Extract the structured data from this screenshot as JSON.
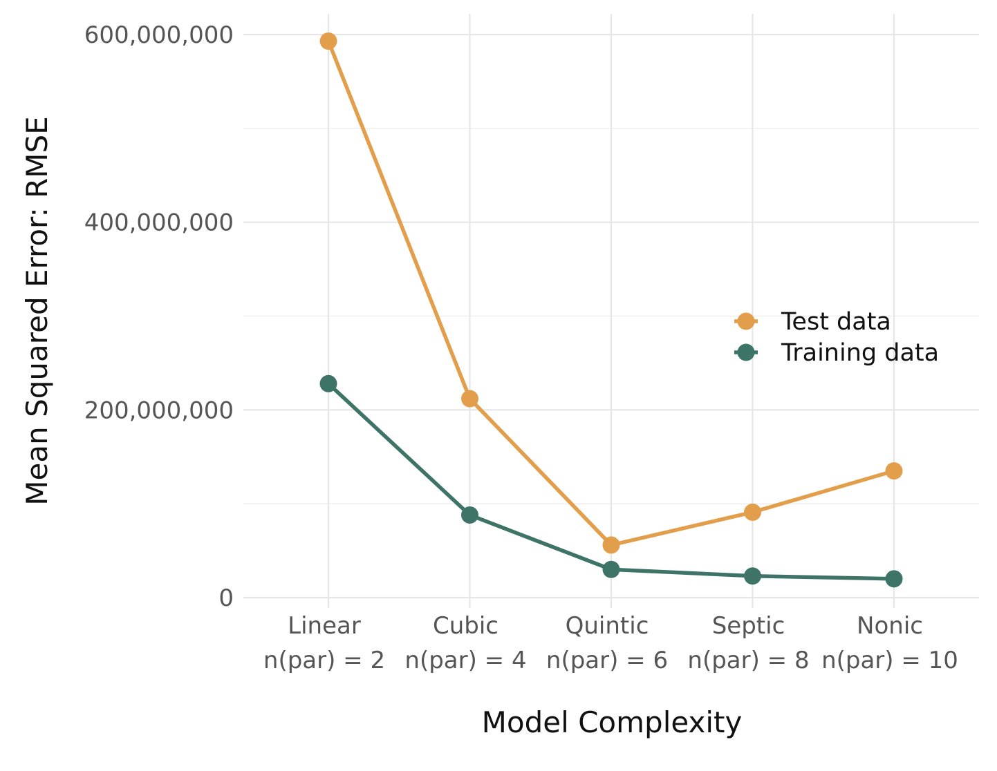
{
  "chart_data": {
    "type": "line",
    "title": "",
    "xlabel": "Model Complexity",
    "ylabel": "Mean Squared Error: RMSE",
    "categories": [
      [
        "Linear",
        "n(par) = 2"
      ],
      [
        "Cubic",
        "n(par) = 4"
      ],
      [
        "Quintic",
        "n(par) = 6"
      ],
      [
        "Septic",
        "n(par) = 8"
      ],
      [
        "Nonic",
        "n(par) = 10"
      ]
    ],
    "ylim": [
      0,
      600000000
    ],
    "yticks": [
      0,
      200000000,
      400000000,
      600000000
    ],
    "ytick_labels": [
      "0",
      "200,000,000",
      "400,000,000",
      "600,000,000"
    ],
    "grid": true,
    "legend_position": "right",
    "series": [
      {
        "name": "Test data",
        "color": "#E39E4B",
        "values": [
          593000000,
          212000000,
          56000000,
          91000000,
          135000000
        ]
      },
      {
        "name": "Training data",
        "color": "#3E7468",
        "values": [
          228000000,
          88000000,
          30000000,
          23000000,
          20000000
        ]
      }
    ]
  }
}
